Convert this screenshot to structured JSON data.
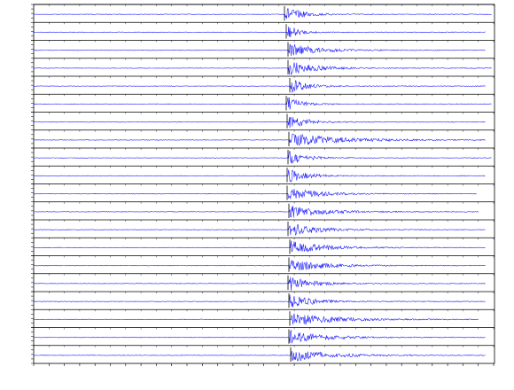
{
  "chart_data": {
    "type": "seismogram",
    "color": "#1f1fff"
  }
}
